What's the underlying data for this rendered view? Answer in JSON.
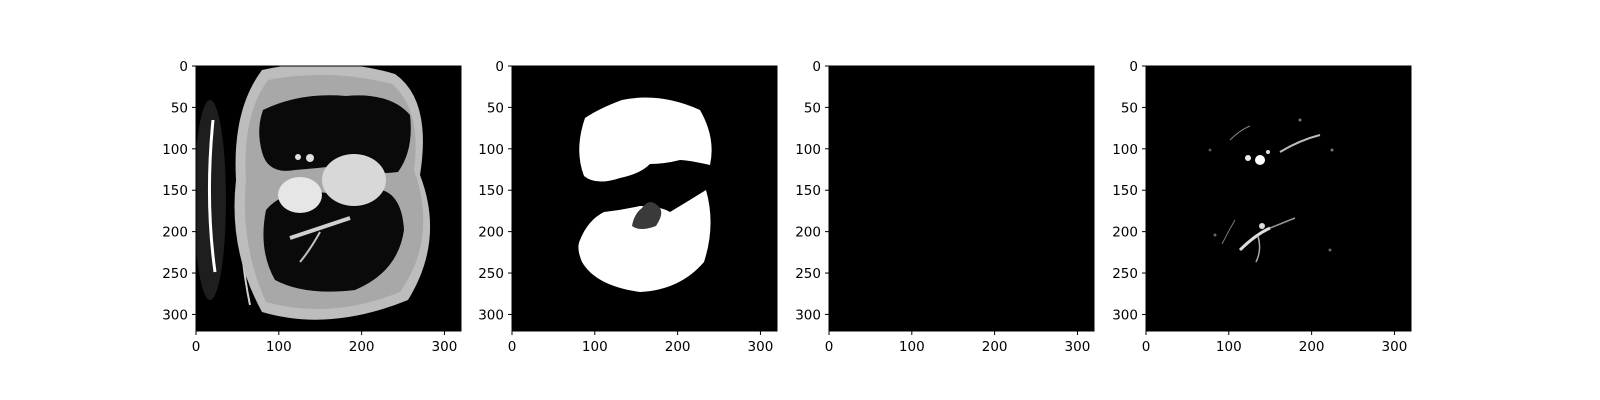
{
  "panels": [
    {
      "name": "ct-slice",
      "description_icon": "ct-axial-slice-image",
      "x_ticks": [
        "0",
        "100",
        "200",
        "300"
      ],
      "y_ticks": [
        "0",
        "50",
        "100",
        "150",
        "200",
        "250",
        "300"
      ]
    },
    {
      "name": "lung-mask",
      "description_icon": "binary-lung-mask-image",
      "x_ticks": [
        "0",
        "100",
        "200",
        "300"
      ],
      "y_ticks": [
        "0",
        "50",
        "100",
        "150",
        "200",
        "250",
        "300"
      ]
    },
    {
      "name": "empty-mask",
      "description_icon": "blank-black-image",
      "x_ticks": [
        "0",
        "100",
        "200",
        "300"
      ],
      "y_ticks": [
        "0",
        "50",
        "100",
        "150",
        "200",
        "250",
        "300"
      ]
    },
    {
      "name": "vessel-map",
      "description_icon": "lung-vessels-image",
      "x_ticks": [
        "0",
        "100",
        "200",
        "300"
      ],
      "y_ticks": [
        "0",
        "50",
        "100",
        "150",
        "200",
        "250",
        "300"
      ]
    }
  ],
  "axis": {
    "x_max": 320,
    "y_max": 320
  },
  "colors": {
    "background": "#ffffff",
    "image_bg": "#000000",
    "tissue": "#bdbdbd",
    "lung": "#ffffff"
  }
}
